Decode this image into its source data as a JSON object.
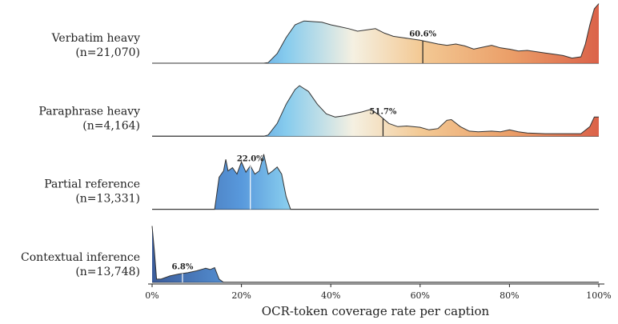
{
  "chart_data": {
    "type": "ridgeline",
    "xlabel": "OCR-token coverage rate per caption",
    "xlim": [
      0,
      100
    ],
    "xticks": [
      {
        "value": 0,
        "label": "0%"
      },
      {
        "value": 20,
        "label": "20%"
      },
      {
        "value": 40,
        "label": "40%"
      },
      {
        "value": 60,
        "label": "60%"
      },
      {
        "value": 80,
        "label": "80%"
      },
      {
        "value": 100,
        "label": "100%"
      }
    ],
    "ylim": [
      0,
      1
    ],
    "colormap": [
      {
        "value": 0,
        "color": "#2b4f93"
      },
      {
        "value": 20,
        "color": "#4a90d9"
      },
      {
        "value": 30,
        "color": "#7cc7ec"
      },
      {
        "value": 45,
        "color": "#f4efdf"
      },
      {
        "value": 60,
        "color": "#f2c58c"
      },
      {
        "value": 80,
        "color": "#e9975c"
      },
      {
        "value": 100,
        "color": "#d8553a"
      }
    ],
    "series": [
      {
        "name": "Verbatim heavy",
        "count_label": "(n=21,070)",
        "median": 60.6,
        "median_label": "60.6%",
        "x": [
          0,
          25,
          26,
          28,
          30,
          32,
          34,
          36,
          38,
          40,
          42,
          44,
          46,
          48,
          50,
          52,
          54,
          56,
          58,
          60,
          62,
          64,
          66,
          68,
          70,
          72,
          74,
          76,
          78,
          80,
          82,
          84,
          86,
          88,
          90,
          92,
          94,
          96,
          97,
          98,
          99,
          100
        ],
        "values": [
          0,
          0,
          0.01,
          0.15,
          0.4,
          0.6,
          0.66,
          0.65,
          0.64,
          0.6,
          0.57,
          0.54,
          0.5,
          0.52,
          0.54,
          0.47,
          0.42,
          0.4,
          0.38,
          0.36,
          0.33,
          0.3,
          0.28,
          0.3,
          0.27,
          0.22,
          0.25,
          0.28,
          0.24,
          0.22,
          0.19,
          0.2,
          0.18,
          0.16,
          0.14,
          0.12,
          0.08,
          0.1,
          0.3,
          0.6,
          0.85,
          0.93
        ]
      },
      {
        "name": "Paraphrase heavy",
        "count_label": "(n=4,164)",
        "median": 51.7,
        "median_label": "51.7%",
        "x": [
          0,
          25,
          26,
          28,
          30,
          32,
          33,
          35,
          37,
          39,
          41,
          43,
          45,
          47,
          49,
          51,
          53,
          55,
          57,
          60,
          62,
          64,
          66,
          67,
          69,
          71,
          73,
          76,
          78,
          80,
          82,
          84,
          88,
          92,
          96,
          98,
          99,
          100
        ],
        "values": [
          0,
          0,
          0.02,
          0.2,
          0.5,
          0.73,
          0.79,
          0.7,
          0.5,
          0.35,
          0.3,
          0.32,
          0.35,
          0.38,
          0.42,
          0.32,
          0.2,
          0.15,
          0.16,
          0.14,
          0.1,
          0.12,
          0.25,
          0.26,
          0.15,
          0.08,
          0.07,
          0.08,
          0.07,
          0.1,
          0.07,
          0.05,
          0.04,
          0.04,
          0.04,
          0.15,
          0.3,
          0.3
        ]
      },
      {
        "name": "Partial reference",
        "count_label": "(n=13,331)",
        "median": 22.0,
        "median_label": "22.0%",
        "x": [
          0,
          14,
          15,
          16,
          16.5,
          17,
          18,
          19,
          20,
          21,
          22,
          23,
          24,
          25,
          26,
          27,
          28,
          29,
          30,
          31,
          100
        ],
        "values": [
          0,
          0,
          0.5,
          0.6,
          0.78,
          0.6,
          0.65,
          0.55,
          0.74,
          0.58,
          0.68,
          0.55,
          0.6,
          0.86,
          0.55,
          0.6,
          0.66,
          0.55,
          0.2,
          0,
          0
        ]
      },
      {
        "name": "Contextual inference",
        "count_label": "(n=13,748)",
        "median": 6.8,
        "median_label": "6.8%",
        "x": [
          0,
          0.5,
          1,
          2,
          4,
          6,
          8,
          10,
          12,
          13,
          14,
          15,
          16,
          100
        ],
        "values": [
          0.88,
          0.5,
          0.05,
          0.05,
          0.1,
          0.13,
          0.15,
          0.18,
          0.22,
          0.2,
          0.23,
          0.05,
          0,
          0
        ]
      }
    ]
  }
}
